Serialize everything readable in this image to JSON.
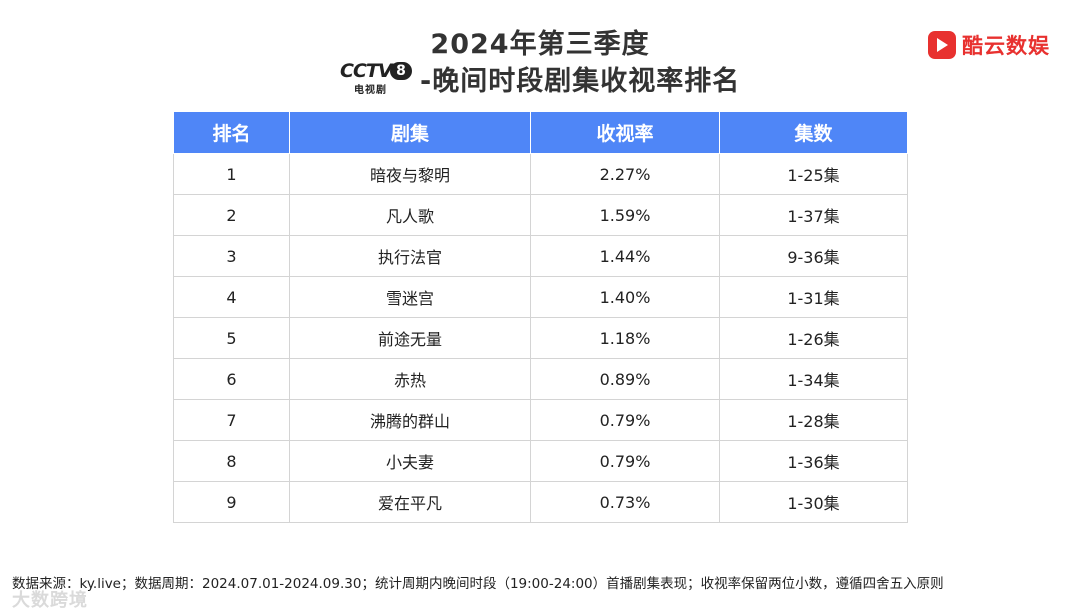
{
  "title": {
    "line1": "2024年第三季度",
    "line2": "-晚间时段剧集收视率排名"
  },
  "channel_logo": {
    "text": "CCTV",
    "number": "8",
    "subtitle": "电视剧"
  },
  "brand": {
    "name": "酷云数娱",
    "color": "#e8312f"
  },
  "table": {
    "header_color": "#4f86f7",
    "headers": [
      "排名",
      "剧集",
      "收视率",
      "集数"
    ],
    "rows": [
      [
        "1",
        "暗夜与黎明",
        "2.27%",
        "1-25集"
      ],
      [
        "2",
        "凡人歌",
        "1.59%",
        "1-37集"
      ],
      [
        "3",
        "执行法官",
        "1.44%",
        "9-36集"
      ],
      [
        "4",
        "雪迷宫",
        "1.40%",
        "1-31集"
      ],
      [
        "5",
        "前途无量",
        "1.18%",
        "1-26集"
      ],
      [
        "6",
        "赤热",
        "0.89%",
        "1-34集"
      ],
      [
        "7",
        "沸腾的群山",
        "0.79%",
        "1-28集"
      ],
      [
        "8",
        "小夫妻",
        "0.79%",
        "1-36集"
      ],
      [
        "9",
        "爱在平凡",
        "0.73%",
        "1-30集"
      ]
    ]
  },
  "footnote": "数据来源：ky.live；数据周期：2024.07.01-2024.09.30；统计周期内晚间时段（19:00-24:00）首播剧集表现；收视率保留两位小数，遵循四舍五入原则",
  "watermark": "大数跨境"
}
